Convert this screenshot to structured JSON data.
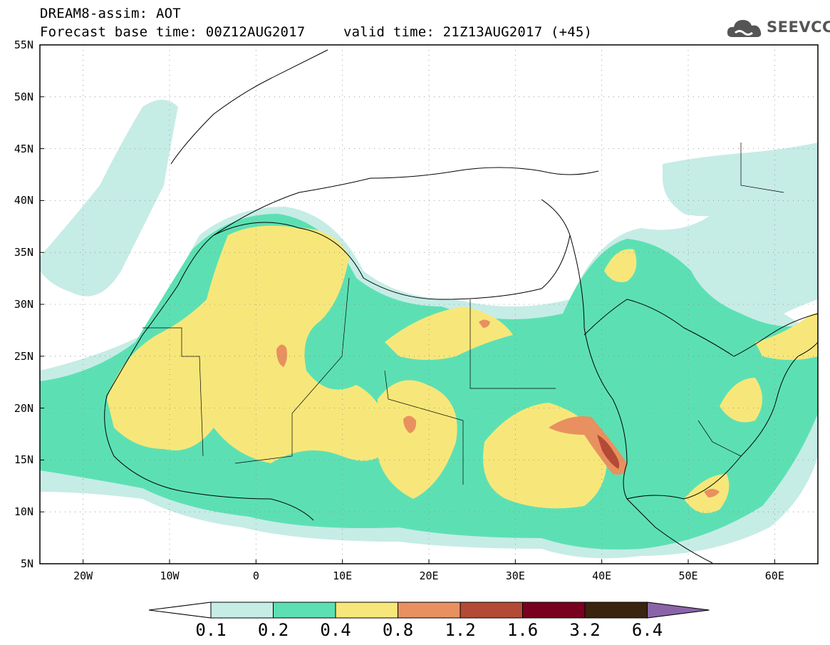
{
  "header": {
    "title": "DREAM8-assim: AOT",
    "base_time": "Forecast base time: 00Z12AUG2017",
    "valid_time": "valid time: 21Z13AUG2017 (+45)",
    "logo_text": "SEEVCCC"
  },
  "map": {
    "lat_labels": [
      "55N",
      "50N",
      "45N",
      "40N",
      "35N",
      "30N",
      "25N",
      "20N",
      "15N",
      "10N",
      "5N"
    ],
    "lon_labels": [
      "20W",
      "10W",
      "0",
      "10E",
      "20E",
      "30E",
      "40E",
      "50E",
      "60E"
    ],
    "extent": {
      "lon_min": -25,
      "lon_max": 65,
      "lat_min": 5,
      "lat_max": 55
    }
  },
  "colorbar": {
    "labels": [
      "0.1",
      "0.2",
      "0.4",
      "0.8",
      "1.2",
      "1.6",
      "3.2",
      "6.4"
    ],
    "colors": [
      "#ffffff",
      "#c6ece6",
      "#5ce0b3",
      "#f7e77a",
      "#e8905f",
      "#b44a36",
      "#7a0020",
      "#3a2410",
      "#8a64a8"
    ]
  }
}
